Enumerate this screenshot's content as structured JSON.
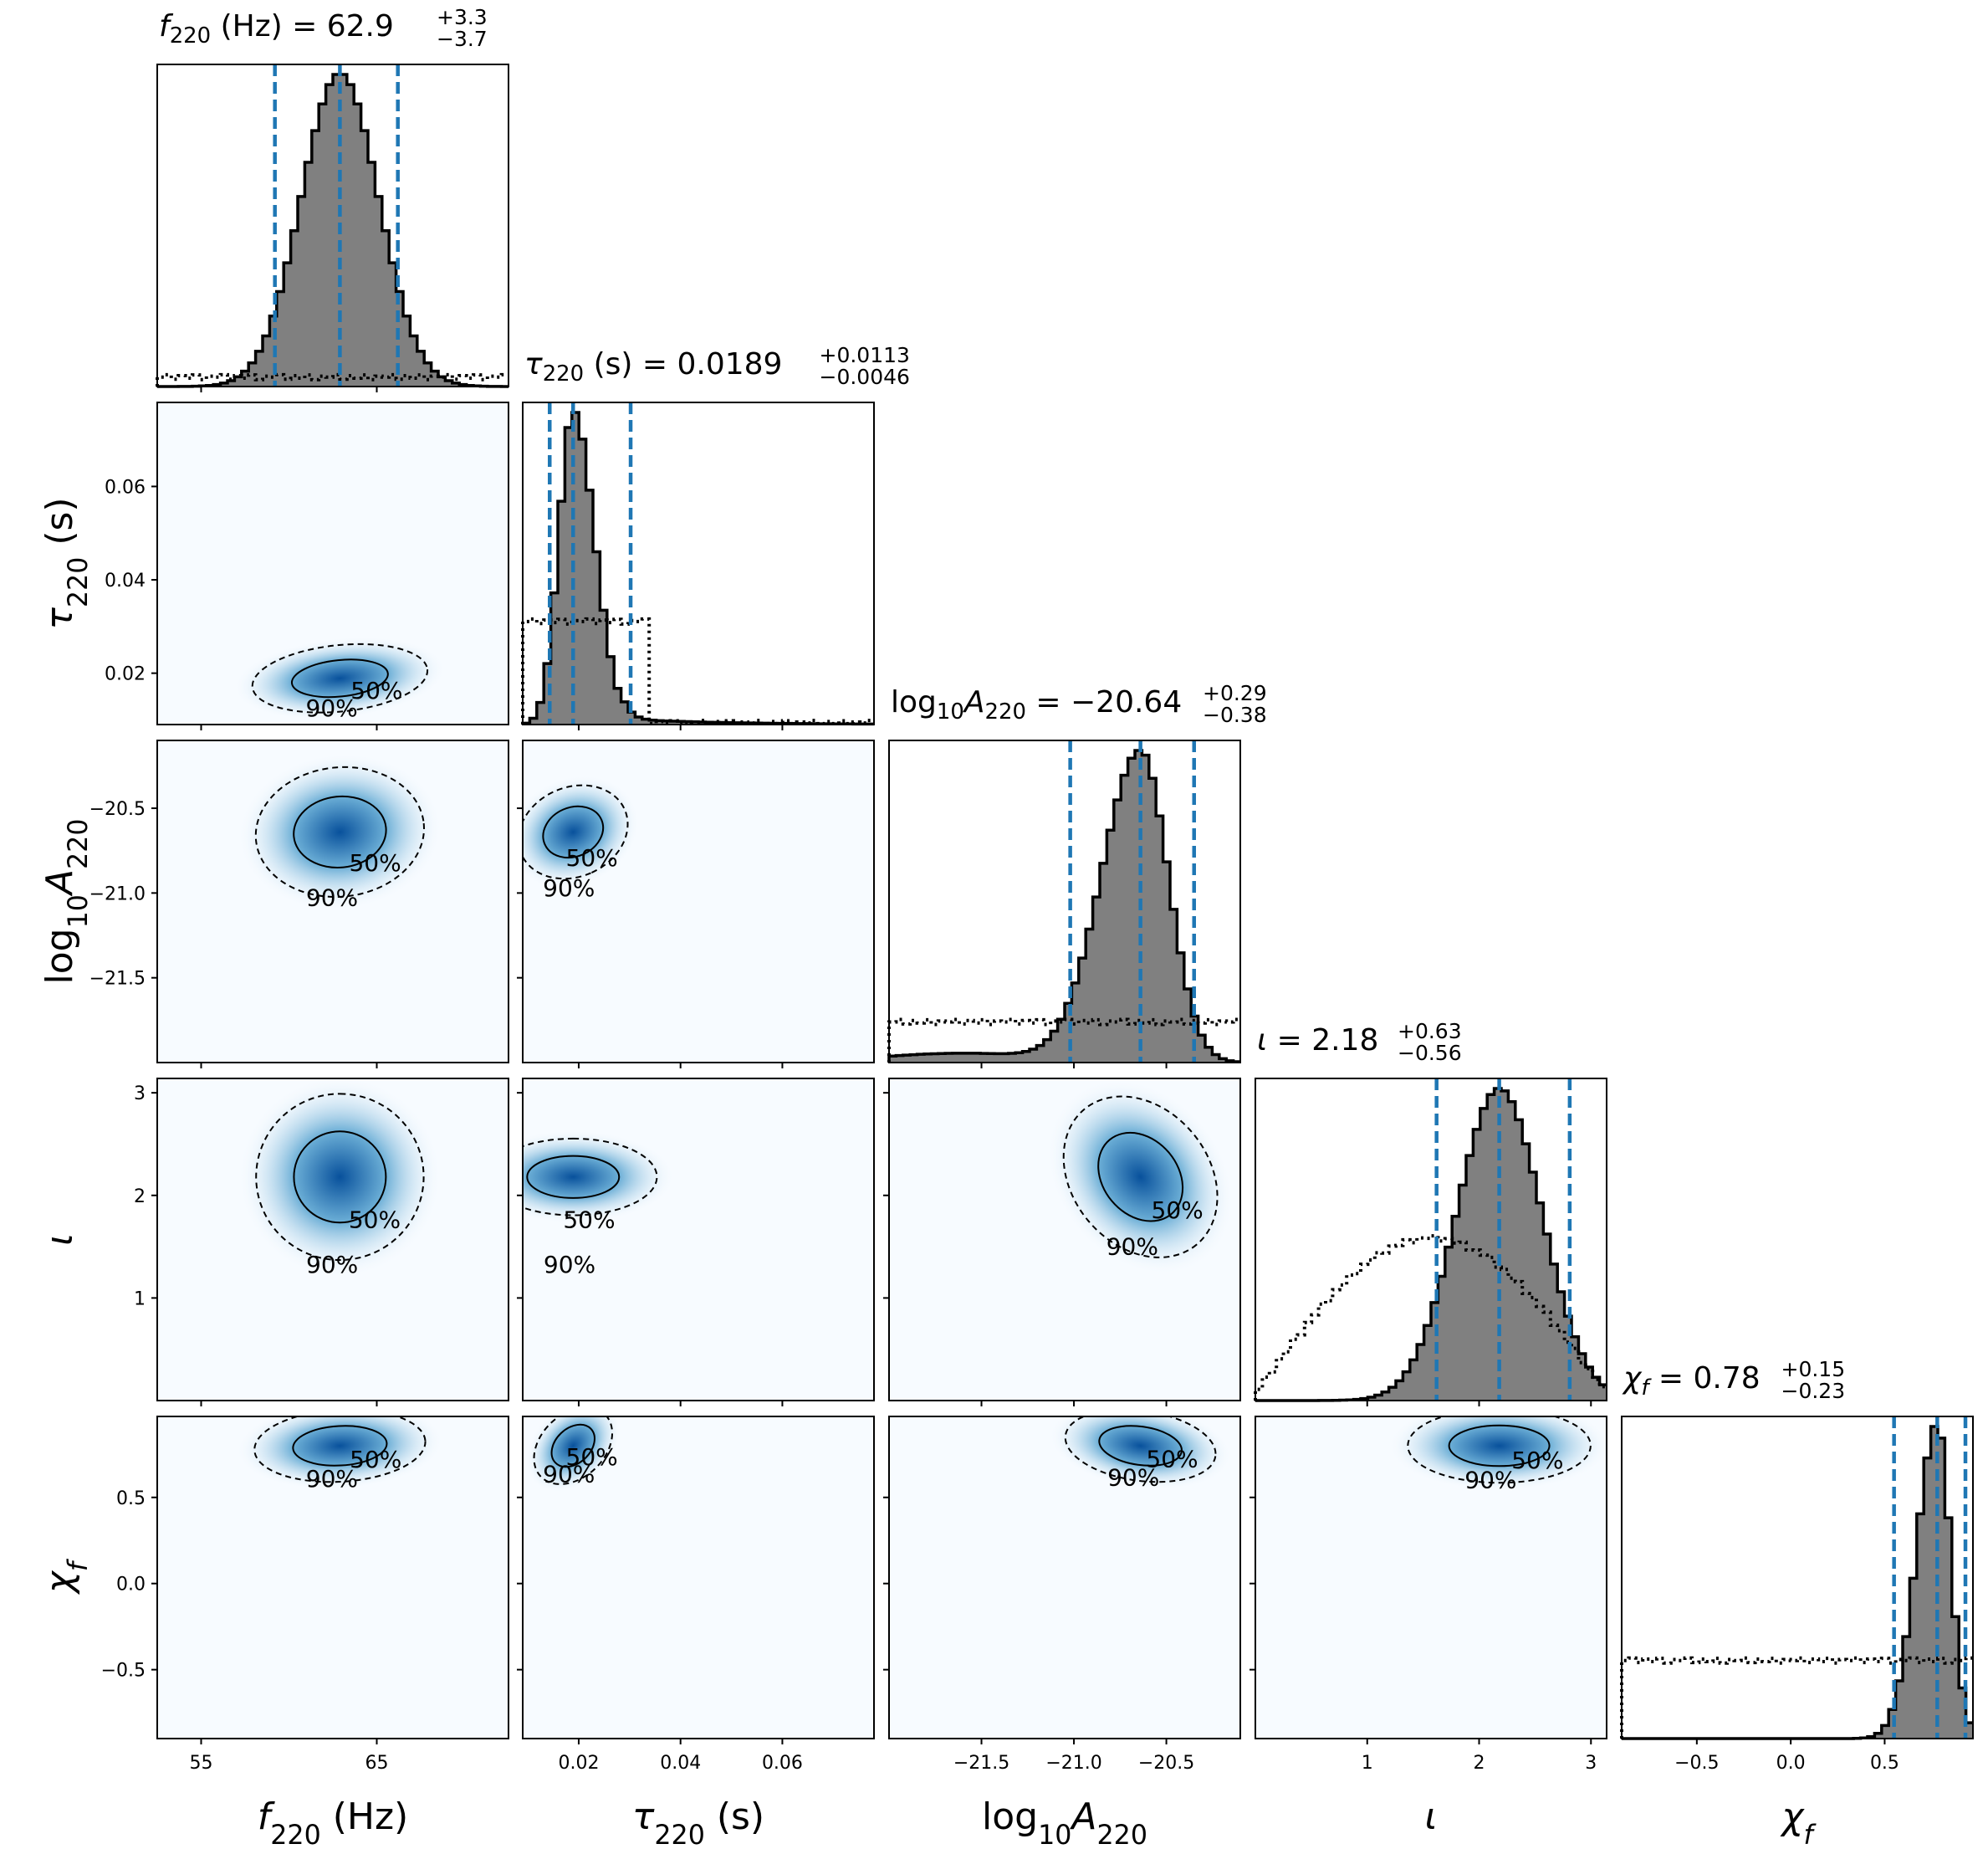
{
  "chart_data": {
    "type": "corner",
    "parameters": [
      {
        "key": "f220",
        "xlabel": "f220 (Hz)",
        "title": {
          "main": "f220 (Hz) = 62.9",
          "upper": "+3.3",
          "lower": "−3.7"
        },
        "median": 62.9,
        "lo": 59.2,
        "hi": 66.2,
        "sigma": 2.2,
        "prior_level": 0.03,
        "range": [
          52.5,
          72.5
        ],
        "ticks": [
          {
            "value": 55,
            "label": "55"
          },
          {
            "value": 65,
            "label": "65"
          }
        ]
      },
      {
        "key": "tau220",
        "xlabel": "τ220 (s)",
        "ylabel": "τ220 (s)",
        "title": {
          "main": "τ220 (s) = 0.0189",
          "upper": "+0.0113",
          "lower": "−0.0046"
        },
        "median": 0.0189,
        "lo": 0.0143,
        "hi": 0.0302,
        "range": [
          0.009,
          0.078
        ],
        "ticks": [
          {
            "value": 0.02,
            "label": "0.02"
          },
          {
            "value": 0.04,
            "label": "0.04"
          },
          {
            "value": 0.06,
            "label": "0.06"
          }
        ]
      },
      {
        "key": "logA",
        "xlabel": "log10A220",
        "ylabel": "log10A220",
        "title": {
          "main": "log10A220 = −20.64",
          "upper": "+0.29",
          "lower": "−0.38"
        },
        "median": -20.64,
        "lo": -21.02,
        "hi": -20.35,
        "sigma": 0.22,
        "prior_level": 0.13,
        "range": [
          -22.0,
          -20.1
        ],
        "ticks": [
          {
            "value": -21.5,
            "label": "−21.5"
          },
          {
            "value": -21.0,
            "label": "−21.0"
          },
          {
            "value": -20.5,
            "label": "−20.5"
          }
        ]
      },
      {
        "key": "iota",
        "xlabel": "ι",
        "ylabel": "ι",
        "title": {
          "main": "ι = 2.18",
          "upper": "+0.63",
          "lower": "−0.56"
        },
        "median": 2.18,
        "lo": 1.62,
        "hi": 2.81,
        "sigma": 0.38,
        "range": [
          0.0,
          3.14
        ],
        "ticks": [
          {
            "value": 1,
            "label": "1"
          },
          {
            "value": 2,
            "label": "2"
          },
          {
            "value": 3,
            "label": "3"
          }
        ]
      },
      {
        "key": "chif",
        "xlabel": "χf",
        "ylabel": "χf",
        "title": {
          "main": "χf = 0.78",
          "upper": "+0.15",
          "lower": "−0.23"
        },
        "median": 0.78,
        "lo": 0.55,
        "hi": 0.93,
        "sigma": 0.1,
        "prior_level": 0.25,
        "range": [
          -0.9,
          0.97
        ],
        "ticks": [
          {
            "value": -0.5,
            "label": "−0.5"
          },
          {
            "value": 0.0,
            "label": "0.0"
          },
          {
            "value": 0.5,
            "label": "0.5"
          }
        ]
      }
    ],
    "contour_labels": [
      "50%",
      "90%"
    ],
    "colors": {
      "hist_fill": "#808080",
      "hist_line": "#000000",
      "quantile_line": "#1f77b4",
      "density_cmap": [
        "#f7fbff",
        "#6baed6",
        "#08519c"
      ]
    }
  }
}
